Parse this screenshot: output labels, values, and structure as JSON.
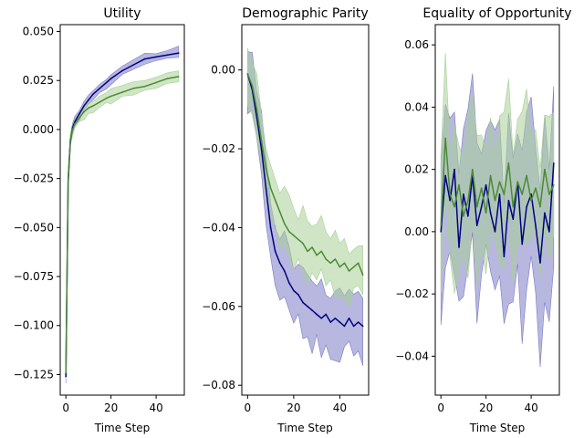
{
  "chart_data": [
    {
      "type": "line",
      "title": "Utility",
      "xlabel": "Time Step",
      "ylabel": "",
      "xlim": [
        -2.5,
        52.5
      ],
      "ylim": [
        -0.1355,
        0.0535
      ],
      "xticks": [
        0,
        20,
        40
      ],
      "yticks": [
        -0.125,
        -0.1,
        -0.075,
        -0.05,
        -0.025,
        0.0,
        0.025,
        0.05
      ],
      "ytick_labels": [
        "−0.125",
        "−0.100",
        "−0.075",
        "−0.050",
        "−0.025",
        "0.000",
        "0.025",
        "0.050"
      ],
      "grid": false,
      "series": [
        {
          "color": "#000080",
          "fill": "#7b7bc4",
          "x": [
            0,
            1,
            2,
            3,
            4,
            6,
            8,
            10,
            12,
            15,
            18,
            20,
            25,
            30,
            35,
            40,
            45,
            50
          ],
          "values": [
            -0.126,
            -0.027,
            -0.006,
            0.001,
            0.004,
            0.008,
            0.012,
            0.015,
            0.018,
            0.021,
            0.024,
            0.026,
            0.03,
            0.033,
            0.036,
            0.037,
            0.038,
            0.039
          ],
          "band": 0.0025
        },
        {
          "color": "#4a8a35",
          "fill": "#a9cf98",
          "x": [
            0,
            1,
            2,
            3,
            4,
            6,
            8,
            10,
            12,
            15,
            18,
            20,
            25,
            30,
            35,
            40,
            45,
            50
          ],
          "values": [
            -0.124,
            -0.025,
            -0.005,
            0.0,
            0.003,
            0.006,
            0.009,
            0.011,
            0.012,
            0.014,
            0.016,
            0.017,
            0.019,
            0.021,
            0.022,
            0.024,
            0.026,
            0.027
          ],
          "band": 0.003
        }
      ]
    },
    {
      "type": "line",
      "title": "Demographic Parity",
      "xlabel": "Time Step",
      "ylabel": "",
      "xlim": [
        -2.5,
        52.5
      ],
      "ylim": [
        -0.0825,
        0.0115
      ],
      "xticks": [
        0,
        20,
        40
      ],
      "yticks": [
        -0.08,
        -0.06,
        -0.04,
        -0.02,
        0.0
      ],
      "ytick_labels": [
        "−0.08",
        "−0.06",
        "−0.04",
        "−0.02",
        "0.00"
      ],
      "grid": false,
      "series": [
        {
          "color": "#000080",
          "fill": "#7b7bc4",
          "x": [
            0,
            2,
            4,
            6,
            8,
            10,
            12,
            14,
            16,
            18,
            20,
            22,
            24,
            26,
            28,
            30,
            32,
            34,
            36,
            38,
            40,
            42,
            44,
            46,
            48,
            50
          ],
          "values": [
            -0.001,
            -0.005,
            -0.012,
            -0.02,
            -0.03,
            -0.04,
            -0.046,
            -0.049,
            -0.051,
            -0.054,
            -0.056,
            -0.057,
            -0.059,
            -0.06,
            -0.061,
            -0.062,
            -0.063,
            -0.062,
            -0.064,
            -0.063,
            -0.064,
            -0.065,
            -0.063,
            -0.065,
            -0.064,
            -0.065
          ],
          "band": 0.008
        },
        {
          "color": "#4a8a35",
          "fill": "#a9cf98",
          "x": [
            0,
            2,
            4,
            6,
            8,
            10,
            12,
            14,
            16,
            18,
            20,
            22,
            24,
            26,
            28,
            30,
            32,
            34,
            36,
            38,
            40,
            42,
            44,
            46,
            48,
            50
          ],
          "values": [
            -0.001,
            -0.004,
            -0.01,
            -0.018,
            -0.025,
            -0.03,
            -0.033,
            -0.036,
            -0.039,
            -0.041,
            -0.042,
            -0.043,
            -0.044,
            -0.046,
            -0.045,
            -0.047,
            -0.046,
            -0.048,
            -0.049,
            -0.048,
            -0.05,
            -0.049,
            -0.051,
            -0.05,
            -0.049,
            -0.052
          ],
          "band": 0.007
        }
      ]
    },
    {
      "type": "line",
      "title": "Equality of Opportunity",
      "xlabel": "Time Step",
      "ylabel": "",
      "xlim": [
        -2.5,
        52.5
      ],
      "ylim": [
        -0.0525,
        0.0665
      ],
      "xticks": [
        0,
        20,
        40
      ],
      "yticks": [
        -0.04,
        -0.02,
        0.0,
        0.02,
        0.04,
        0.06
      ],
      "ytick_labels": [
        "−0.04",
        "−0.02",
        "0.00",
        "0.02",
        "0.04",
        "0.06"
      ],
      "grid": false,
      "series": [
        {
          "color": "#000080",
          "fill": "#7b7bc4",
          "x": [
            0,
            2,
            4,
            6,
            8,
            10,
            12,
            14,
            16,
            18,
            20,
            22,
            24,
            26,
            28,
            30,
            32,
            34,
            36,
            38,
            40,
            42,
            44,
            46,
            48,
            50
          ],
          "values": [
            0.0,
            0.018,
            0.01,
            0.02,
            -0.005,
            0.012,
            0.005,
            0.018,
            0.002,
            0.008,
            0.015,
            0.006,
            0.0,
            0.012,
            -0.008,
            0.01,
            0.004,
            0.016,
            -0.004,
            0.008,
            0.012,
            0.002,
            -0.01,
            0.006,
            0.0,
            0.022
          ],
          "band": 0.025
        },
        {
          "color": "#4a8a35",
          "fill": "#a9cf98",
          "x": [
            0,
            2,
            4,
            6,
            8,
            10,
            12,
            14,
            16,
            18,
            20,
            22,
            24,
            26,
            28,
            30,
            32,
            34,
            36,
            38,
            40,
            42,
            44,
            46,
            48,
            50
          ],
          "values": [
            0.002,
            0.03,
            0.012,
            0.008,
            0.015,
            0.005,
            0.01,
            0.02,
            0.008,
            0.014,
            0.006,
            0.018,
            0.01,
            0.016,
            0.012,
            0.022,
            0.008,
            0.016,
            0.012,
            0.018,
            0.01,
            0.014,
            0.008,
            0.02,
            0.012,
            0.015
          ],
          "band": 0.02
        }
      ]
    }
  ]
}
